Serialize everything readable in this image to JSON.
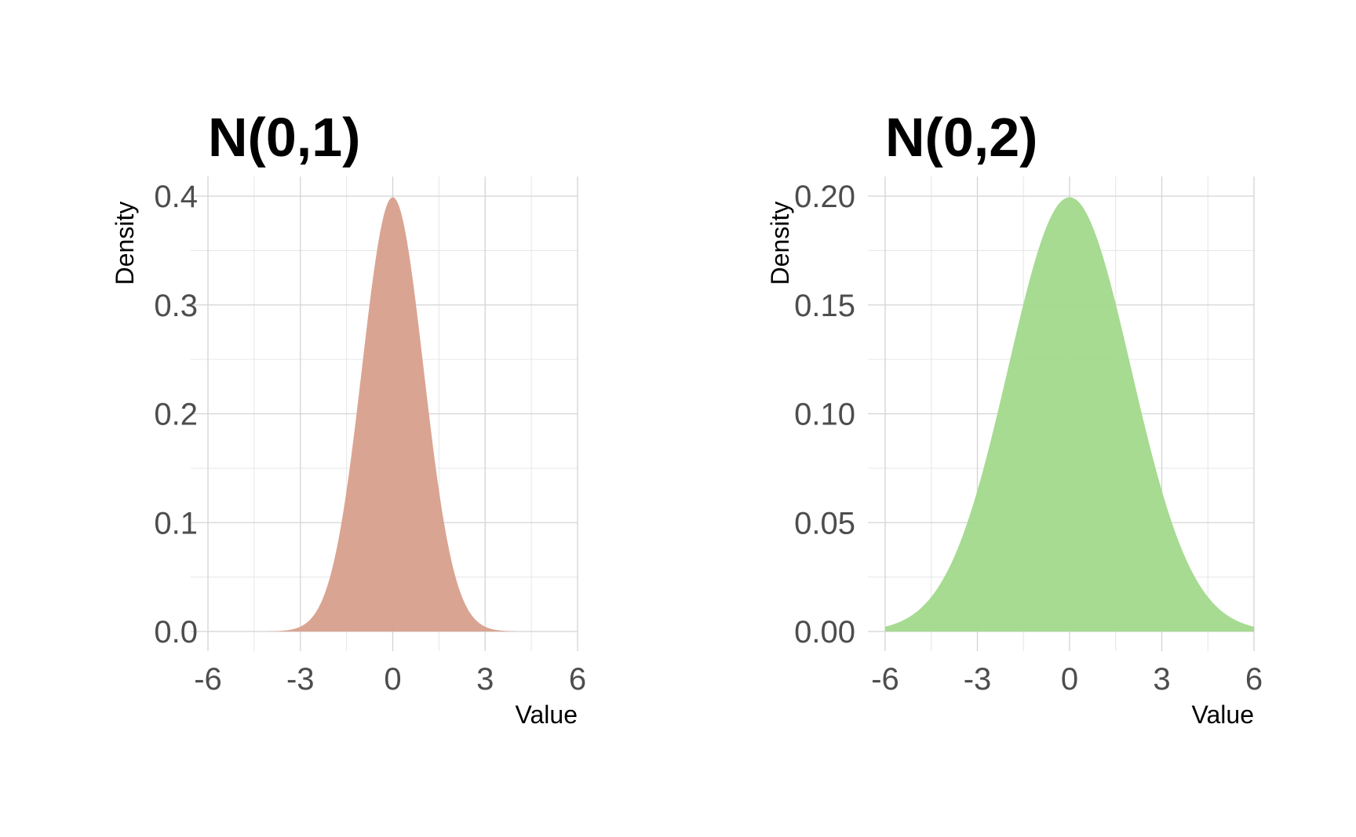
{
  "chart_data": [
    {
      "type": "area",
      "title": "N(0,1)",
      "xlabel": "Value",
      "ylabel": "Density",
      "mean": 0,
      "sd": 1,
      "x_range": [
        -4,
        4
      ],
      "xlim": [
        -6,
        6
      ],
      "ylim": [
        0,
        0.4
      ],
      "x_ticks": [
        -6,
        -3,
        0,
        3,
        6
      ],
      "x_tick_labels": [
        "-6",
        "-3",
        "0",
        "3",
        "6"
      ],
      "y_ticks": [
        0.0,
        0.1,
        0.2,
        0.3,
        0.4
      ],
      "y_tick_labels": [
        "0.0",
        "0.1",
        "0.2",
        "0.3",
        "0.4"
      ],
      "x_minor_ticks": [
        -4.5,
        -1.5,
        1.5,
        4.5
      ],
      "y_minor_ticks": [
        0.05,
        0.15,
        0.25,
        0.35
      ],
      "fill_color": "#d89f8c",
      "grid": true
    },
    {
      "type": "area",
      "title": "N(0,2)",
      "xlabel": "Value",
      "ylabel": "Density",
      "mean": 0,
      "sd": 2,
      "x_range": [
        -6,
        6
      ],
      "xlim": [
        -6,
        6
      ],
      "ylim": [
        0,
        0.2
      ],
      "x_ticks": [
        -6,
        -3,
        0,
        3,
        6
      ],
      "x_tick_labels": [
        "-6",
        "-3",
        "0",
        "3",
        "6"
      ],
      "y_ticks": [
        0.0,
        0.05,
        0.1,
        0.15,
        0.2
      ],
      "y_tick_labels": [
        "0.00",
        "0.05",
        "0.10",
        "0.15",
        "0.20"
      ],
      "x_minor_ticks": [
        -4.5,
        -1.5,
        1.5,
        4.5
      ],
      "y_minor_ticks": [
        0.025,
        0.075,
        0.125,
        0.175
      ],
      "fill_color": "#a1d98b",
      "grid": true
    }
  ]
}
